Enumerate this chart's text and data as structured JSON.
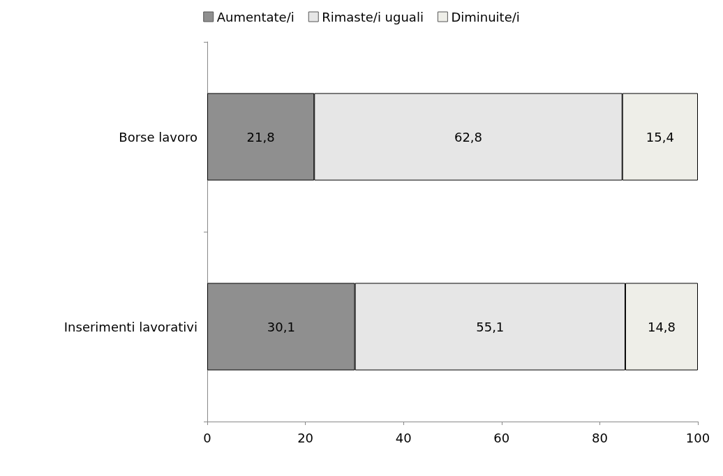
{
  "chart_data": {
    "type": "bar",
    "orientation": "horizontal",
    "stacked": true,
    "categories": [
      "Borse lavoro",
      "Inserimenti lavorativi"
    ],
    "series": [
      {
        "name": "Aumentate/i",
        "color": "#8f8f8f",
        "values": [
          21.8,
          30.1
        ],
        "value_labels": [
          "21,8",
          "30,1"
        ]
      },
      {
        "name": "Rimaste/i uguali",
        "color": "#e6e6e6",
        "values": [
          62.8,
          55.1
        ],
        "value_labels": [
          "62,8",
          "55,1"
        ]
      },
      {
        "name": "Diminuite/i",
        "color": "#eeeee8",
        "values": [
          15.4,
          14.8
        ],
        "value_labels": [
          "15,4",
          "14,8"
        ]
      }
    ],
    "xlim": [
      0,
      100
    ],
    "xticks": [
      0,
      20,
      40,
      60,
      80,
      100
    ],
    "grid": false,
    "legend": "top"
  }
}
